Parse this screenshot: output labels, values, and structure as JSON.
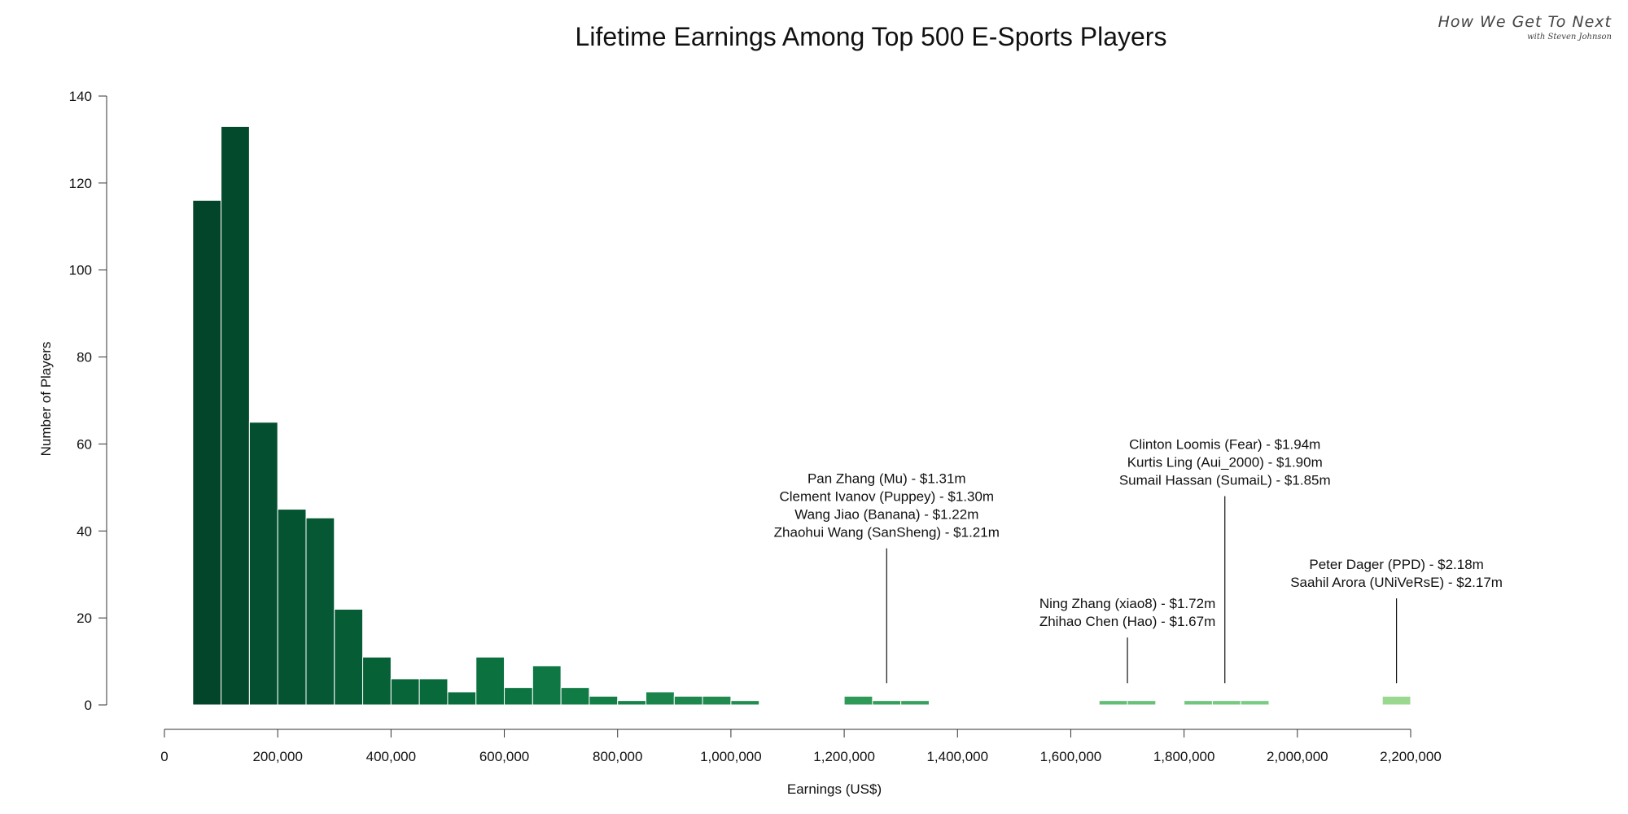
{
  "brand": {
    "name": "How We Get To Next",
    "tagline": "with Steven Johnson"
  },
  "chart_data": {
    "type": "bar",
    "title": "Lifetime Earnings Among Top 500 E-Sports Players",
    "xlabel": "Earnings (US$)",
    "ylabel": "Number of Players",
    "xlim": [
      0,
      2200000
    ],
    "ylim": [
      0,
      140
    ],
    "bin_width": 50000,
    "x_ticks": [
      {
        "value": 0,
        "label": "0"
      },
      {
        "value": 200000,
        "label": "200,000"
      },
      {
        "value": 400000,
        "label": "400,000"
      },
      {
        "value": 600000,
        "label": "600,000"
      },
      {
        "value": 800000,
        "label": "800,000"
      },
      {
        "value": 1000000,
        "label": "1,000,000"
      },
      {
        "value": 1200000,
        "label": "1,200,000"
      },
      {
        "value": 1400000,
        "label": "1,400,000"
      },
      {
        "value": 1600000,
        "label": "1,600,000"
      },
      {
        "value": 1800000,
        "label": "1,800,000"
      },
      {
        "value": 2000000,
        "label": "2,000,000"
      },
      {
        "value": 2200000,
        "label": "2,200,000"
      }
    ],
    "y_ticks": [
      {
        "value": 0,
        "label": "0"
      },
      {
        "value": 20,
        "label": "20"
      },
      {
        "value": 40,
        "label": "40"
      },
      {
        "value": 60,
        "label": "60"
      },
      {
        "value": 80,
        "label": "80"
      },
      {
        "value": 100,
        "label": "100"
      },
      {
        "value": 120,
        "label": "120"
      },
      {
        "value": 140,
        "label": "140"
      }
    ],
    "bins": [
      {
        "start": 50000,
        "count": 116,
        "color": "#03452a"
      },
      {
        "start": 100000,
        "count": 133,
        "color": "#034a2c"
      },
      {
        "start": 150000,
        "count": 65,
        "color": "#044f2f"
      },
      {
        "start": 200000,
        "count": 45,
        "color": "#045431"
      },
      {
        "start": 250000,
        "count": 43,
        "color": "#055833"
      },
      {
        "start": 300000,
        "count": 22,
        "color": "#065d35"
      },
      {
        "start": 350000,
        "count": 11,
        "color": "#066137"
      },
      {
        "start": 400000,
        "count": 6,
        "color": "#076539"
      },
      {
        "start": 450000,
        "count": 6,
        "color": "#08693b"
      },
      {
        "start": 500000,
        "count": 3,
        "color": "#096d3d"
      },
      {
        "start": 550000,
        "count": 11,
        "color": "#0a713f"
      },
      {
        "start": 600000,
        "count": 4,
        "color": "#0c7441"
      },
      {
        "start": 650000,
        "count": 9,
        "color": "#0e7743"
      },
      {
        "start": 700000,
        "count": 4,
        "color": "#117b45"
      },
      {
        "start": 750000,
        "count": 2,
        "color": "#147e47"
      },
      {
        "start": 800000,
        "count": 1,
        "color": "#178149"
      },
      {
        "start": 850000,
        "count": 3,
        "color": "#1a844b"
      },
      {
        "start": 900000,
        "count": 2,
        "color": "#1d874d"
      },
      {
        "start": 950000,
        "count": 2,
        "color": "#208a4f"
      },
      {
        "start": 1000000,
        "count": 1,
        "color": "#238d51"
      },
      {
        "start": 1200000,
        "count": 2,
        "color": "#2f9a58"
      },
      {
        "start": 1250000,
        "count": 1,
        "color": "#339d5b"
      },
      {
        "start": 1300000,
        "count": 1,
        "color": "#37a05e"
      },
      {
        "start": 1650000,
        "count": 1,
        "color": "#62be76"
      },
      {
        "start": 1700000,
        "count": 1,
        "color": "#67c179"
      },
      {
        "start": 1800000,
        "count": 1,
        "color": "#70c67e"
      },
      {
        "start": 1850000,
        "count": 1,
        "color": "#75c981"
      },
      {
        "start": 1900000,
        "count": 1,
        "color": "#7acb84"
      },
      {
        "start": 2150000,
        "count": 2,
        "color": "#9bd88f"
      }
    ],
    "annotations": [
      {
        "x": 1275000,
        "lines": [
          "Pan Zhang (Mu) - $1.31m",
          "Clement Ivanov (Puppey) - $1.30m",
          "Wang Jiao (Banana) - $1.22m",
          "Zhaohui Wang (SanSheng) - $1.21m"
        ],
        "line_top": 36,
        "line_bottom": 5
      },
      {
        "x": 1700000,
        "lines": [
          "Ning Zhang (xiao8) - $1.72m",
          "Zhihao Chen (Hao) - $1.67m"
        ],
        "line_top": 15.5,
        "line_bottom": 5
      },
      {
        "x": 1872000,
        "lines": [
          "Clinton Loomis (Fear) - $1.94m",
          "Kurtis Ling (Aui_2000) - $1.90m",
          "Sumail Hassan (SumaiL) - $1.85m"
        ],
        "line_top": 48,
        "line_bottom": 5
      },
      {
        "x": 2175000,
        "lines": [
          "Peter Dager (PPD) - $2.18m",
          "Saahil Arora (UNiVeRsE) - $2.17m"
        ],
        "line_top": 24.5,
        "line_bottom": 5
      }
    ]
  }
}
